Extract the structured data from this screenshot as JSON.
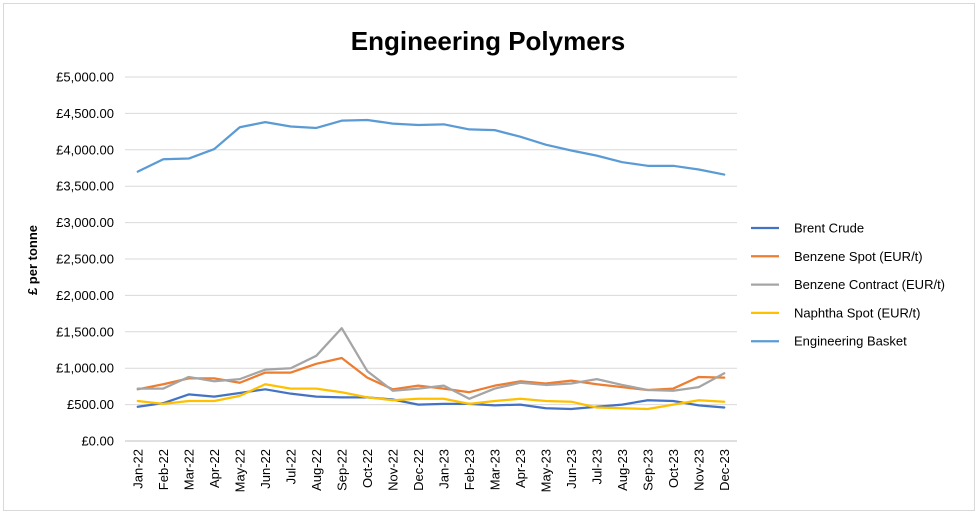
{
  "chart_data": {
    "type": "line",
    "title": "Engineering Polymers",
    "xlabel": "",
    "ylabel": "£ per tonne",
    "ylim": [
      0,
      5000
    ],
    "ytick_step": 500,
    "ytick_labels": [
      "£0.00",
      "£500.00",
      "£1,000.00",
      "£1,500.00",
      "£2,000.00",
      "£2,500.00",
      "£3,000.00",
      "£3,500.00",
      "£4,000.00",
      "£4,500.00",
      "£5,000.00"
    ],
    "grid": true,
    "legend_position": "right",
    "categories": [
      "Jan-22",
      "Feb-22",
      "Mar-22",
      "Apr-22",
      "May-22",
      "Jun-22",
      "Jul-22",
      "Aug-22",
      "Sep-22",
      "Oct-22",
      "Nov-22",
      "Dec-22",
      "Jan-23",
      "Feb-23",
      "Mar-23",
      "Apr-23",
      "May-23",
      "Jun-23",
      "Jul-23",
      "Aug-23",
      "Sep-23",
      "Oct-23",
      "Nov-23",
      "Dec-23"
    ],
    "series": [
      {
        "name": "Brent Crude",
        "color": "#4472c4",
        "values": [
          470,
          520,
          640,
          610,
          660,
          710,
          650,
          610,
          600,
          600,
          570,
          500,
          510,
          510,
          490,
          500,
          450,
          440,
          470,
          500,
          560,
          550,
          490,
          460
        ]
      },
      {
        "name": "Benzene Spot (EUR/t)",
        "color": "#ed7d31",
        "values": [
          710,
          780,
          860,
          860,
          800,
          940,
          940,
          1060,
          1140,
          870,
          710,
          760,
          720,
          670,
          760,
          820,
          790,
          830,
          780,
          740,
          700,
          720,
          880,
          870
        ]
      },
      {
        "name": "Benzene Contract (EUR/t)",
        "color": "#a5a5a5",
        "values": [
          720,
          720,
          880,
          820,
          850,
          980,
          1000,
          1170,
          1550,
          960,
          690,
          720,
          760,
          580,
          720,
          800,
          770,
          790,
          850,
          770,
          700,
          690,
          740,
          930
        ]
      },
      {
        "name": "Naphtha Spot (EUR/t)",
        "color": "#ffc000",
        "values": [
          550,
          510,
          550,
          550,
          620,
          780,
          720,
          720,
          670,
          600,
          560,
          580,
          580,
          510,
          550,
          580,
          550,
          540,
          460,
          450,
          440,
          500,
          560,
          540
        ]
      },
      {
        "name": "Engineering Basket",
        "color": "#5b9bd5",
        "values": [
          3700,
          3870,
          3880,
          4010,
          4310,
          4380,
          4320,
          4300,
          4400,
          4410,
          4360,
          4340,
          4350,
          4280,
          4270,
          4180,
          4070,
          3990,
          3920,
          3830,
          3780,
          3780,
          3730,
          3660
        ]
      }
    ]
  }
}
